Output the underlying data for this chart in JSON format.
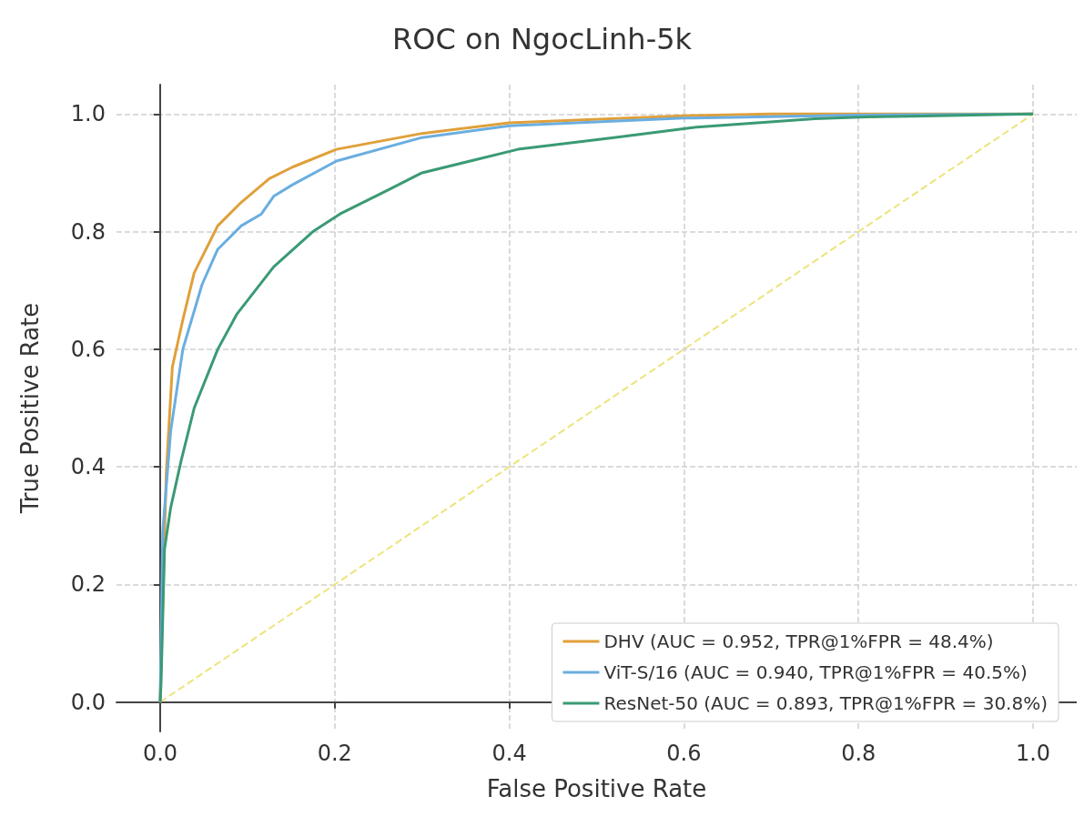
{
  "chart_data": {
    "type": "line",
    "title": "ROC on NgocLinh-5k",
    "xlabel": "False Positive Rate",
    "ylabel": "True Positive Rate",
    "xlim": [
      -0.05,
      1.05
    ],
    "ylim": [
      -0.05,
      1.05
    ],
    "xticks": [
      {
        "value": 0,
        "label": "0.0"
      },
      {
        "value": 0.2,
        "label": "0.2"
      },
      {
        "value": 0.4,
        "label": "0.4"
      },
      {
        "value": 0.6,
        "label": "0.6"
      },
      {
        "value": 0.8,
        "label": "0.8"
      },
      {
        "value": 1,
        "label": "1.0"
      }
    ],
    "yticks": [
      {
        "value": 0,
        "label": "0.0"
      },
      {
        "value": 0.2,
        "label": "0.2"
      },
      {
        "value": 0.4,
        "label": "0.4"
      },
      {
        "value": 0.6,
        "label": "0.6"
      },
      {
        "value": 0.8,
        "label": "0.8"
      },
      {
        "value": 1,
        "label": "1.0"
      }
    ],
    "grid": true,
    "legend": "bottom right",
    "marker": "none",
    "series": [
      {
        "name": "DHV (AUC = 0.952, TPR@1%FPR = 48.4%)",
        "color": "#e0a03a",
        "line_style": "solid",
        "x": [
          0,
          0.007,
          0.014,
          0.026,
          0.039,
          0.066,
          0.093,
          0.125,
          0.152,
          0.202,
          0.3,
          0.4,
          0.6,
          0.7,
          1
        ],
        "values": [
          0,
          0.39,
          0.57,
          0.65,
          0.73,
          0.81,
          0.85,
          0.89,
          0.91,
          0.94,
          0.967,
          0.985,
          0.997,
          1,
          1
        ]
      },
      {
        "name": "ViT-S/16 (AUC = 0.940, TPR@1%FPR = 40.5%)",
        "color": "#6aaee0",
        "line_style": "solid",
        "x": [
          0,
          0.003,
          0.012,
          0.026,
          0.048,
          0.066,
          0.093,
          0.116,
          0.13,
          0.152,
          0.202,
          0.3,
          0.4,
          0.6,
          0.8,
          1
        ],
        "values": [
          0,
          0.29,
          0.46,
          0.6,
          0.71,
          0.77,
          0.81,
          0.83,
          0.86,
          0.88,
          0.92,
          0.96,
          0.98,
          0.993,
          0.998,
          1
        ]
      },
      {
        "name": "ResNet-50 (AUC = 0.893, TPR@1%FPR = 30.8%)",
        "color": "#3a9a74",
        "line_style": "solid",
        "x": [
          0,
          0.001,
          0.005,
          0.012,
          0.024,
          0.039,
          0.066,
          0.088,
          0.13,
          0.175,
          0.206,
          0.26,
          0.3,
          0.41,
          0.52,
          0.61,
          0.75,
          0.81,
          1
        ],
        "values": [
          0,
          0.03,
          0.26,
          0.33,
          0.41,
          0.5,
          0.6,
          0.66,
          0.74,
          0.8,
          0.83,
          0.87,
          0.9,
          0.94,
          0.96,
          0.977,
          0.992,
          0.995,
          1
        ]
      },
      {
        "color": "#ece47a",
        "line_style": "dashed",
        "x": [
          0,
          1
        ],
        "values": [
          0,
          1
        ]
      }
    ]
  }
}
